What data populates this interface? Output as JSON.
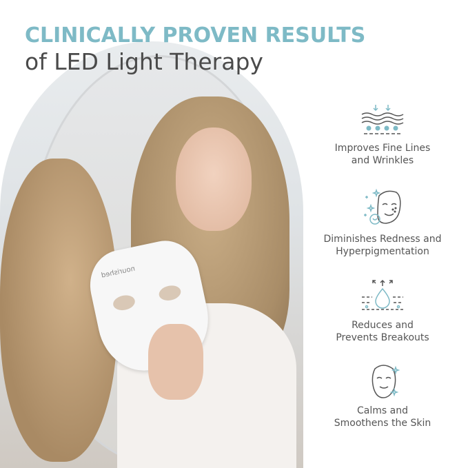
{
  "header": {
    "title": "CLINICALLY PROVEN RESULTS",
    "subtitle": "of LED Light Therapy"
  },
  "photo": {
    "mask_logo": "nourished"
  },
  "colors": {
    "accent": "#7ebac6",
    "text": "#4a4a4a"
  },
  "features": [
    {
      "icon": "skin-layers-icon",
      "line1": "Improves Fine Lines",
      "line2": "and Wrinkles"
    },
    {
      "icon": "face-sparkle-icon",
      "line1": "Diminishes Redness and",
      "line2": "Hyperpigmentation"
    },
    {
      "icon": "pore-droplet-icon",
      "line1": "Reduces and",
      "line2": "Prevents Breakouts"
    },
    {
      "icon": "calm-face-icon",
      "line1": "Calms and",
      "line2": "Smoothens the Skin"
    }
  ]
}
